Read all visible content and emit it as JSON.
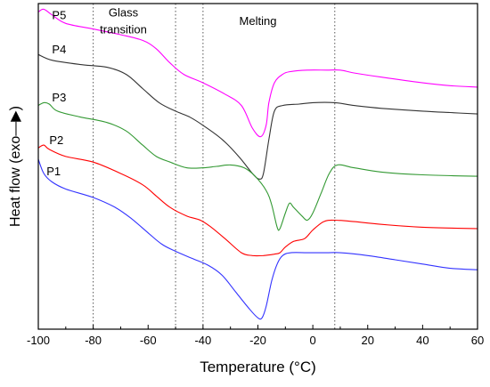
{
  "chart_data": {
    "type": "line",
    "xlabel": "Temperature (°C)",
    "ylabel": "Heat flow (exo—▶)",
    "xlim": [
      -100,
      60
    ],
    "x_ticks": [
      -100,
      -80,
      -60,
      -40,
      -20,
      0,
      20,
      40,
      60
    ],
    "x_tick_labels": [
      "-100",
      "-80",
      "-60",
      "-40",
      "-20",
      "0",
      "20",
      "40",
      "60"
    ],
    "y_ticks_shown": false,
    "grid": false,
    "legend": "none",
    "reference_lines": [
      {
        "x": -80,
        "style": "dotted"
      },
      {
        "x": -50,
        "style": "dotted"
      },
      {
        "x": -40,
        "style": "dotted"
      },
      {
        "x": 8,
        "style": "dotted"
      }
    ],
    "annotations": [
      {
        "text": "Glass",
        "x": -69,
        "y": 97
      },
      {
        "text": "transition",
        "x": -69,
        "y": 91
      },
      {
        "text": "Melting",
        "x": -20,
        "y": 94
      }
    ],
    "series": [
      {
        "name": "P5",
        "color": "#ff00ff",
        "label_at": [
          -95,
          96
        ],
        "points": [
          [
            -100,
            97
          ],
          [
            -98,
            98
          ],
          [
            -95,
            96
          ],
          [
            -90,
            93
          ],
          [
            -80,
            91
          ],
          [
            -70,
            89
          ],
          [
            -62,
            87
          ],
          [
            -57,
            84
          ],
          [
            -52,
            79
          ],
          [
            -47,
            75
          ],
          [
            -40,
            72
          ],
          [
            -32,
            68
          ],
          [
            -26,
            64
          ],
          [
            -22,
            56
          ],
          [
            -19,
            53
          ],
          [
            -17,
            57
          ],
          [
            -16,
            65
          ],
          [
            -14,
            72
          ],
          [
            -11,
            75
          ],
          [
            -8,
            76
          ],
          [
            -2,
            76.5
          ],
          [
            5,
            76.5
          ],
          [
            10,
            76.5
          ],
          [
            15,
            75.5
          ],
          [
            25,
            74
          ],
          [
            40,
            72
          ],
          [
            50,
            71
          ],
          [
            60,
            70.5
          ]
        ]
      },
      {
        "name": "P4",
        "color": "#333333",
        "label_at": [
          -95,
          84
        ],
        "points": [
          [
            -100,
            82
          ],
          [
            -95,
            80
          ],
          [
            -85,
            78.5
          ],
          [
            -75,
            77.5
          ],
          [
            -68,
            75
          ],
          [
            -62,
            70
          ],
          [
            -56,
            65
          ],
          [
            -50,
            62
          ],
          [
            -45,
            60
          ],
          [
            -40,
            57
          ],
          [
            -33,
            52
          ],
          [
            -27,
            46
          ],
          [
            -22,
            40
          ],
          [
            -19.5,
            38
          ],
          [
            -18,
            40
          ],
          [
            -16,
            52
          ],
          [
            -14,
            62
          ],
          [
            -11,
            64
          ],
          [
            -5,
            64.5
          ],
          [
            0,
            65
          ],
          [
            8,
            65
          ],
          [
            15,
            64
          ],
          [
            25,
            63
          ],
          [
            40,
            62
          ],
          [
            50,
            61.5
          ],
          [
            60,
            61
          ]
        ]
      },
      {
        "name": "P3",
        "color": "#339933",
        "label_at": [
          -95,
          67
        ],
        "points": [
          [
            -100,
            64
          ],
          [
            -98,
            65
          ],
          [
            -96,
            64.5
          ],
          [
            -93,
            62
          ],
          [
            -85,
            60
          ],
          [
            -75,
            58
          ],
          [
            -68,
            55
          ],
          [
            -62,
            50
          ],
          [
            -57,
            46
          ],
          [
            -52,
            44
          ],
          [
            -46,
            42
          ],
          [
            -40,
            42
          ],
          [
            -35,
            42.5
          ],
          [
            -30,
            43
          ],
          [
            -25,
            42
          ],
          [
            -21,
            39
          ],
          [
            -17,
            34
          ],
          [
            -15,
            29
          ],
          [
            -13,
            21
          ],
          [
            -12,
            20.5
          ],
          [
            -10,
            26
          ],
          [
            -8.5,
            29.5
          ],
          [
            -7,
            28
          ],
          [
            -4,
            25
          ],
          [
            -2,
            23.5
          ],
          [
            0,
            26
          ],
          [
            3,
            33
          ],
          [
            6,
            40
          ],
          [
            9,
            43
          ],
          [
            15,
            42
          ],
          [
            25,
            40.5
          ],
          [
            40,
            39.5
          ],
          [
            60,
            39
          ]
        ]
      },
      {
        "name": "P2",
        "color": "#ff0000",
        "label_at": [
          -96,
          52
        ],
        "points": [
          [
            -100,
            49
          ],
          [
            -98,
            50
          ],
          [
            -96,
            48.5
          ],
          [
            -90,
            46
          ],
          [
            -80,
            44
          ],
          [
            -70,
            40
          ],
          [
            -62,
            36
          ],
          [
            -57,
            32
          ],
          [
            -52,
            28
          ],
          [
            -46,
            25
          ],
          [
            -41,
            23.5
          ],
          [
            -37,
            21
          ],
          [
            -32,
            17
          ],
          [
            -26,
            12
          ],
          [
            -22,
            11
          ],
          [
            -18,
            11
          ],
          [
            -14,
            11.5
          ],
          [
            -12,
            12
          ],
          [
            -10,
            14
          ],
          [
            -7,
            16
          ],
          [
            -3,
            17
          ],
          [
            0,
            20
          ],
          [
            4,
            23
          ],
          [
            8,
            23.5
          ],
          [
            15,
            23
          ],
          [
            25,
            22
          ],
          [
            40,
            21
          ],
          [
            60,
            20.5
          ]
        ]
      },
      {
        "name": "P1",
        "color": "#3333ff",
        "label_at": [
          -97,
          41
        ],
        "points": [
          [
            -100,
            45
          ],
          [
            -98,
            40
          ],
          [
            -95,
            37
          ],
          [
            -90,
            34.5
          ],
          [
            -80,
            31.5
          ],
          [
            -72,
            28
          ],
          [
            -66,
            24
          ],
          [
            -60,
            19
          ],
          [
            -55,
            15
          ],
          [
            -50,
            12.5
          ],
          [
            -44,
            10
          ],
          [
            -38,
            7.5
          ],
          [
            -33,
            4
          ],
          [
            -28,
            -2
          ],
          [
            -23,
            -8
          ],
          [
            -20,
            -11
          ],
          [
            -18.5,
            -11
          ],
          [
            -17,
            -7
          ],
          [
            -15,
            2
          ],
          [
            -13,
            8
          ],
          [
            -11,
            11
          ],
          [
            -8,
            12
          ],
          [
            -2,
            12
          ],
          [
            5,
            12
          ],
          [
            10,
            12
          ],
          [
            20,
            11
          ],
          [
            30,
            9.5
          ],
          [
            40,
            8
          ],
          [
            50,
            6.5
          ],
          [
            60,
            6
          ]
        ]
      }
    ]
  }
}
